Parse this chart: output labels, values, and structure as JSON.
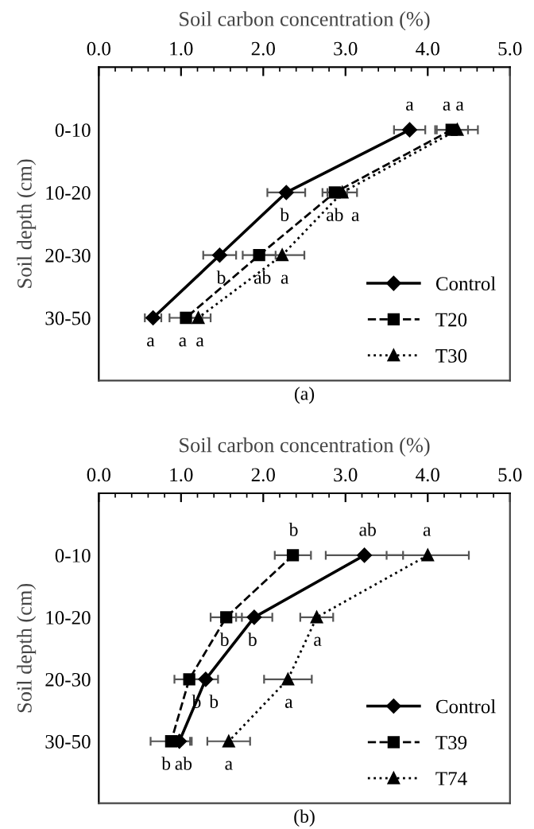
{
  "chart_data": [
    {
      "type": "line",
      "orientation": "horizontal",
      "xlabel": "Soil carbon concentration (%)",
      "ylabel": "Soil depth (cm)",
      "categories": [
        "0-10",
        "10-20",
        "20-30",
        "30-50"
      ],
      "xlim": [
        0,
        5
      ],
      "xticks": [
        {
          "value": 0,
          "label": "0.0"
        },
        {
          "value": 0.2,
          "label": null
        },
        {
          "value": 0.4,
          "label": null
        },
        {
          "value": 0.6,
          "label": null
        },
        {
          "value": 0.8,
          "label": null
        },
        {
          "value": 1,
          "label": "1.0"
        },
        {
          "value": 1.2,
          "label": null
        },
        {
          "value": 1.4,
          "label": null
        },
        {
          "value": 1.6,
          "label": null
        },
        {
          "value": 1.8,
          "label": null
        },
        {
          "value": 2,
          "label": "2.0"
        },
        {
          "value": 2.2,
          "label": null
        },
        {
          "value": 2.4,
          "label": null
        },
        {
          "value": 2.6,
          "label": null
        },
        {
          "value": 2.8,
          "label": null
        },
        {
          "value": 3,
          "label": "3.0"
        },
        {
          "value": 3.2,
          "label": null
        },
        {
          "value": 3.4,
          "label": null
        },
        {
          "value": 3.6,
          "label": null
        },
        {
          "value": 3.8,
          "label": null
        },
        {
          "value": 4,
          "label": "4.0"
        },
        {
          "value": 4.2,
          "label": null
        },
        {
          "value": 4.4,
          "label": null
        },
        {
          "value": 4.6,
          "label": null
        },
        {
          "value": 4.8,
          "label": null
        },
        {
          "value": 5,
          "label": "5.0"
        }
      ],
      "grid": false,
      "legend": "bottom right",
      "series": [
        {
          "name": "Control",
          "color": "#000000",
          "marker": "diamond",
          "line_style": "solid",
          "values": [
            3.78,
            2.28,
            1.47,
            0.66
          ],
          "errors": [
            0.19,
            0.23,
            0.2,
            0.1
          ]
        },
        {
          "name": "T20",
          "color": "#000000",
          "marker": "square",
          "line_style": "dashed",
          "values": [
            4.29,
            2.87,
            1.95,
            1.06
          ],
          "errors": [
            0.2,
            0.15,
            0.2,
            0.2
          ]
        },
        {
          "name": "T30",
          "color": "#000000",
          "marker": "triangle",
          "line_style": "dotted",
          "values": [
            4.36,
            2.96,
            2.23,
            1.21
          ],
          "errors": [
            0.25,
            0.18,
            0.27,
            0.15
          ]
        }
      ],
      "annotations": [
        {
          "text": "a",
          "x": 3.78,
          "y": "0-10"
        },
        {
          "text": "a",
          "x": 4.23,
          "y": "0-10"
        },
        {
          "text": "a",
          "x": 4.39,
          "y": "0-10"
        },
        {
          "text": "b",
          "x": 2.26,
          "y": "10-20"
        },
        {
          "text": "ab",
          "x": 2.87,
          "y": "10-20"
        },
        {
          "text": "a",
          "x": 3.12,
          "y": "10-20"
        },
        {
          "text": "b",
          "x": 1.49,
          "y": "20-30"
        },
        {
          "text": "ab",
          "x": 1.99,
          "y": "20-30"
        },
        {
          "text": "a",
          "x": 2.26,
          "y": "20-30"
        },
        {
          "text": "a",
          "x": 0.63,
          "y": "30-50"
        },
        {
          "text": "a",
          "x": 1.02,
          "y": "30-50"
        },
        {
          "text": "a",
          "x": 1.23,
          "y": "30-50"
        },
        "(a)"
      ]
    },
    {
      "type": "line",
      "orientation": "horizontal",
      "xlabel": "Soil carbon concentration (%)",
      "ylabel": "Soil depth (cm)",
      "categories": [
        "0-10",
        "10-20",
        "20-30",
        "30-50"
      ],
      "xlim": [
        0,
        5
      ],
      "xticks": [
        {
          "value": 0,
          "label": "0.0"
        },
        {
          "value": 0.2,
          "label": null
        },
        {
          "value": 0.4,
          "label": null
        },
        {
          "value": 0.6,
          "label": null
        },
        {
          "value": 0.8,
          "label": null
        },
        {
          "value": 1,
          "label": "1.0"
        },
        {
          "value": 1.2,
          "label": null
        },
        {
          "value": 1.4,
          "label": null
        },
        {
          "value": 1.6,
          "label": null
        },
        {
          "value": 1.8,
          "label": null
        },
        {
          "value": 2,
          "label": "2.0"
        },
        {
          "value": 2.2,
          "label": null
        },
        {
          "value": 2.4,
          "label": null
        },
        {
          "value": 2.6,
          "label": null
        },
        {
          "value": 2.8,
          "label": null
        },
        {
          "value": 3,
          "label": "3.0"
        },
        {
          "value": 3.2,
          "label": null
        },
        {
          "value": 3.4,
          "label": null
        },
        {
          "value": 3.6,
          "label": null
        },
        {
          "value": 3.8,
          "label": null
        },
        {
          "value": 4,
          "label": "4.0"
        },
        {
          "value": 4.2,
          "label": null
        },
        {
          "value": 4.4,
          "label": null
        },
        {
          "value": 4.6,
          "label": null
        },
        {
          "value": 4.8,
          "label": null
        },
        {
          "value": 5,
          "label": "5.0"
        }
      ],
      "grid": false,
      "legend": "bottom right",
      "series": [
        {
          "name": "Control",
          "color": "#000000",
          "marker": "diamond",
          "line_style": "solid",
          "values": [
            3.23,
            1.89,
            1.3,
            0.98
          ],
          "errors": [
            0.47,
            0.22,
            0.15,
            0.13
          ]
        },
        {
          "name": "T39",
          "color": "#000000",
          "marker": "square",
          "line_style": "dashed",
          "values": [
            2.36,
            1.55,
            1.1,
            0.88
          ],
          "errors": [
            0.22,
            0.19,
            0.18,
            0.25
          ]
        },
        {
          "name": "T74",
          "color": "#000000",
          "marker": "triangle",
          "line_style": "dotted",
          "values": [
            4.0,
            2.65,
            2.3,
            1.58
          ],
          "errors": [
            0.5,
            0.2,
            0.29,
            0.26
          ]
        }
      ],
      "annotations": [
        {
          "text": "b",
          "x": 2.37,
          "y": "0-10"
        },
        {
          "text": "ab",
          "x": 3.27,
          "y": "0-10"
        },
        {
          "text": "a",
          "x": 3.99,
          "y": "0-10"
        },
        {
          "text": "b",
          "x": 1.53,
          "y": "10-20"
        },
        {
          "text": "b",
          "x": 1.87,
          "y": "10-20"
        },
        {
          "text": "a",
          "x": 2.66,
          "y": "10-20"
        },
        {
          "text": "b",
          "x": 1.19,
          "y": "20-30"
        },
        {
          "text": "b",
          "x": 1.4,
          "y": "20-30"
        },
        {
          "text": "a",
          "x": 2.31,
          "y": "20-30"
        },
        {
          "text": "b",
          "x": 0.82,
          "y": "30-50"
        },
        {
          "text": "ab",
          "x": 1.03,
          "y": "30-50"
        },
        {
          "text": "a",
          "x": 1.58,
          "y": "30-50"
        },
        "(b)"
      ]
    }
  ]
}
